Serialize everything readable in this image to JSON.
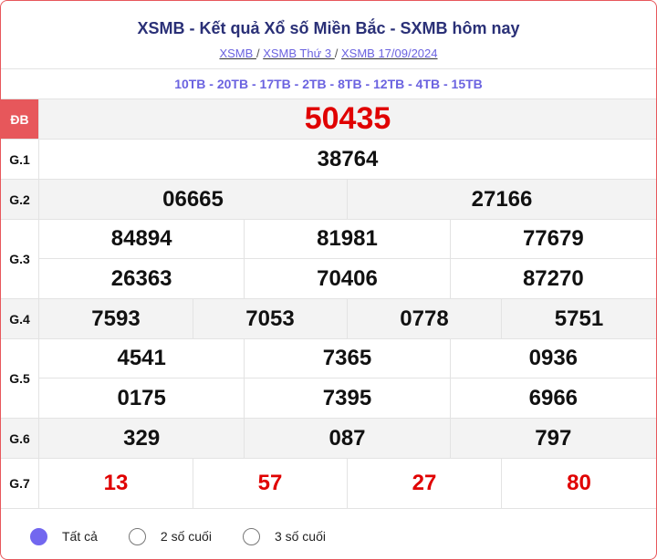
{
  "header": {
    "title": "XSMB - Kết quả Xổ số Miền Bắc - SXMB hôm nay",
    "breadcrumbs": [
      "XSMB ",
      "XSMB Thứ 3 ",
      "XSMB 17/09/2024"
    ],
    "separator": "/"
  },
  "codes": "10TB - 20TB - 17TB - 2TB - 8TB - 12TB - 4TB - 15TB",
  "prizes": {
    "db": {
      "label": "ĐB",
      "numbers": [
        "50435"
      ]
    },
    "g1": {
      "label": "G.1",
      "numbers": [
        "38764"
      ]
    },
    "g2": {
      "label": "G.2",
      "numbers": [
        "06665",
        "27166"
      ]
    },
    "g3": {
      "label": "G.3",
      "numbers": [
        "84894",
        "81981",
        "77679",
        "26363",
        "70406",
        "87270"
      ]
    },
    "g4": {
      "label": "G.4",
      "numbers": [
        "7593",
        "7053",
        "0778",
        "5751"
      ]
    },
    "g5": {
      "label": "G.5",
      "numbers": [
        "4541",
        "7365",
        "0936",
        "0175",
        "7395",
        "6966"
      ]
    },
    "g6": {
      "label": "G.6",
      "numbers": [
        "329",
        "087",
        "797"
      ]
    },
    "g7": {
      "label": "G.7",
      "numbers": [
        "13",
        "57",
        "27",
        "80"
      ]
    }
  },
  "filter": {
    "options": [
      "Tất cả",
      "2 số cuối",
      "3 số cuối"
    ],
    "selected": 0
  },
  "colors": {
    "accent": "#e7575b",
    "prize_red": "#e00000",
    "link": "#6b63e0",
    "title": "#2a3077"
  }
}
